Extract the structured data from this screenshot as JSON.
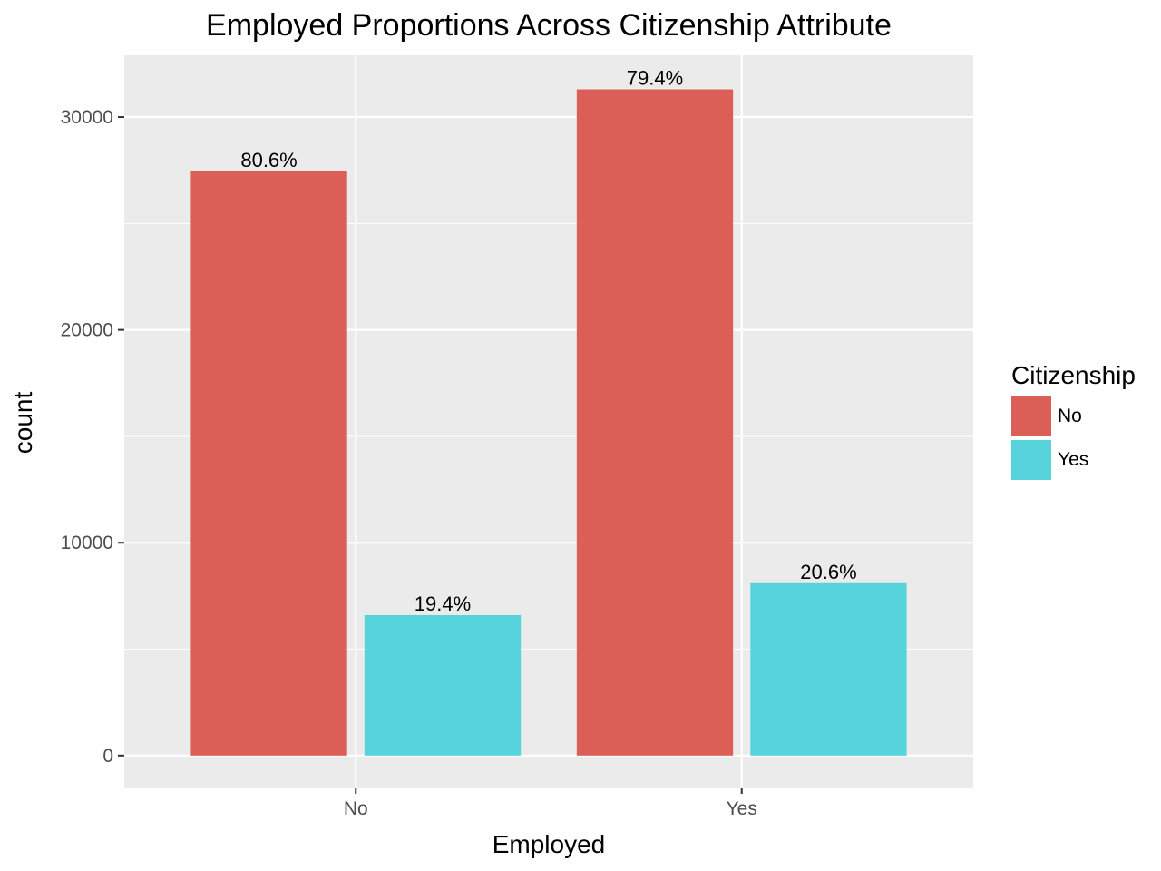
{
  "chart_data": {
    "type": "bar",
    "title": "Employed Proportions Across Citizenship Attribute",
    "xlabel": "Employed",
    "ylabel": "count",
    "categories": [
      "No",
      "Yes"
    ],
    "series": [
      {
        "name": "No",
        "color": "#db5f57",
        "values": [
          27450,
          31300
        ],
        "labels": [
          "80.6%",
          "79.4%"
        ]
      },
      {
        "name": "Yes",
        "color": "#56d3db",
        "values": [
          6600,
          8100
        ],
        "labels": [
          "19.4%",
          "20.6%"
        ]
      }
    ],
    "ylim": [
      -1500,
      32900
    ],
    "yticks": [
      0,
      10000,
      20000,
      30000
    ],
    "ytick_labels": [
      "0",
      "10000",
      "20000",
      "30000"
    ],
    "grid": true,
    "panel_background": "#ebebeb",
    "grid_color": "#ffffff",
    "legend": {
      "title": "Citizenship",
      "position": "right",
      "entries": [
        "No",
        "Yes"
      ]
    }
  }
}
